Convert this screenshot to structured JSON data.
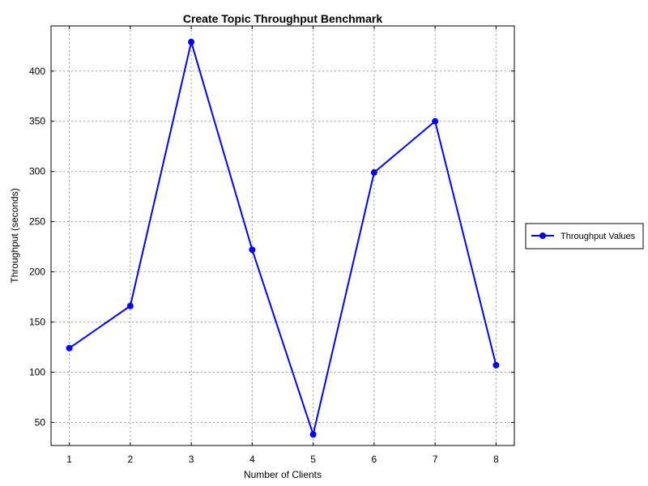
{
  "chart_data": {
    "type": "line",
    "title": "Create Topic Throughput Benchmark",
    "xlabel": "Number of Clients",
    "ylabel": "Throughput (seconds)",
    "x": [
      1,
      2,
      3,
      4,
      5,
      6,
      7,
      8
    ],
    "xticks": [
      "1",
      "2",
      "3",
      "4",
      "5",
      "6",
      "7",
      "8"
    ],
    "yticks": [
      "50",
      "100",
      "150",
      "200",
      "250",
      "300",
      "350",
      "400"
    ],
    "xlim": [
      0.7,
      8.3
    ],
    "ylim": [
      27,
      445
    ],
    "grid": true,
    "legend_position": "right",
    "series": [
      {
        "name": "Throughput Values",
        "color": "#0000ff",
        "marker": "circle",
        "values": [
          124,
          166,
          429,
          222,
          38,
          299,
          350,
          107
        ]
      }
    ]
  }
}
